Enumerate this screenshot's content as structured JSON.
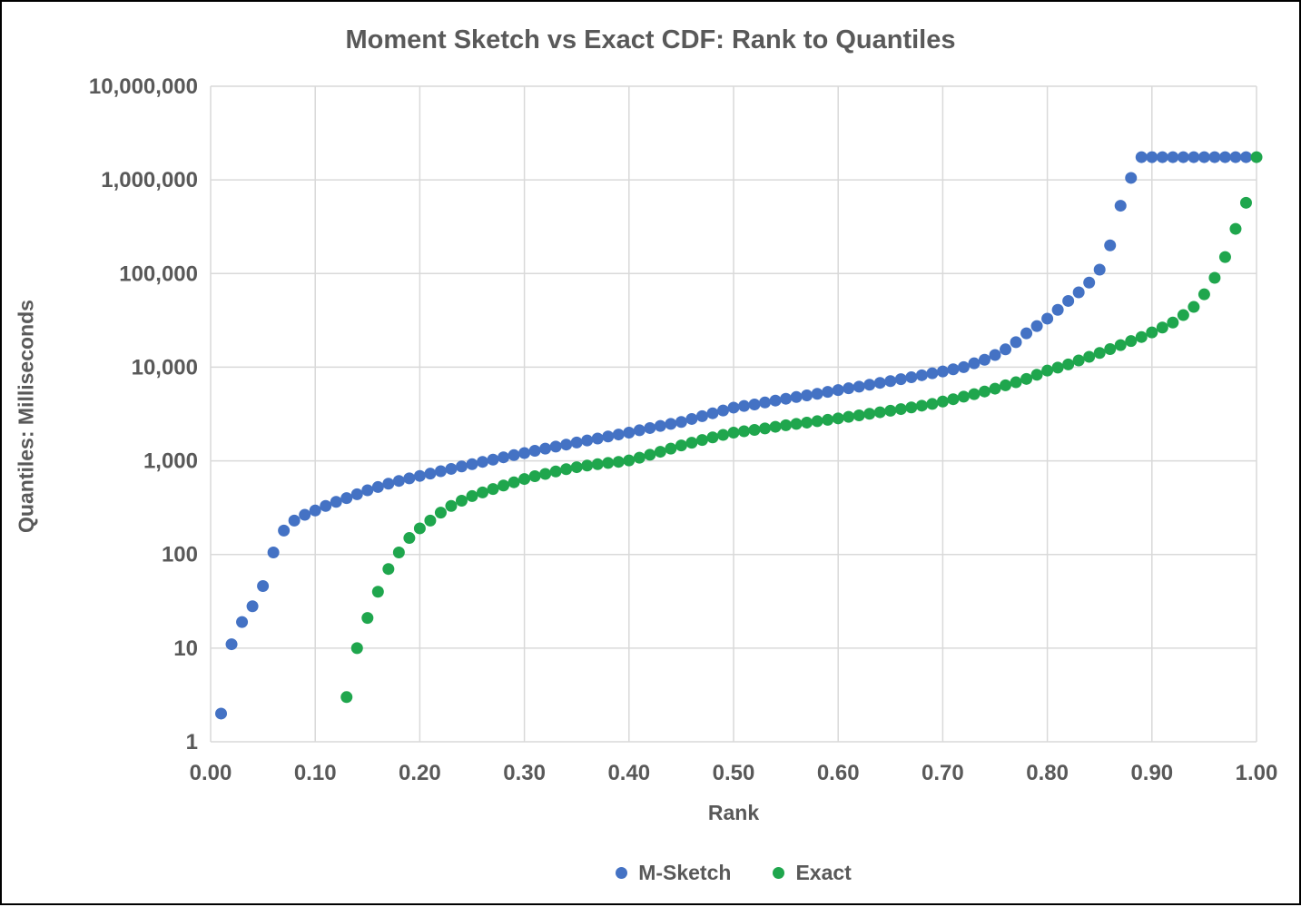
{
  "chart_data": {
    "type": "scatter",
    "title": "Moment Sketch vs Exact CDF: Rank to Quantiles",
    "xlabel": "Rank",
    "ylabel": "Quantiles: Milliseconds",
    "grid": true,
    "legend_position": "bottom",
    "style": {
      "background": "#FFFFFF",
      "border_color": "#000000",
      "grid_color": "#D9D9D9",
      "text_color": "#595959",
      "marker_radius": 6.5
    },
    "x_axis": {
      "min": 0,
      "max": 1,
      "tick_values": [
        0,
        0.1,
        0.2,
        0.3,
        0.4,
        0.5,
        0.6,
        0.7,
        0.8,
        0.9,
        1.0
      ],
      "tick_labels": [
        "0.00",
        "0.10",
        "0.20",
        "0.30",
        "0.40",
        "0.50",
        "0.60",
        "0.70",
        "0.80",
        "0.90",
        "1.00"
      ]
    },
    "y_axis": {
      "scale": "log",
      "min": 1,
      "max": 10000000,
      "tick_values": [
        1,
        10,
        100,
        1000,
        10000,
        100000,
        1000000,
        10000000
      ],
      "tick_labels": [
        "1",
        "10",
        "100",
        "1,000",
        "10,000",
        "100,000",
        "1,000,000",
        "10,000,000"
      ]
    },
    "series": [
      {
        "name": "M-Sketch",
        "color": "#4472C4",
        "marker": "circle",
        "x": [
          0.01,
          0.02,
          0.03,
          0.04,
          0.05,
          0.06,
          0.07,
          0.08,
          0.09,
          0.1,
          0.11,
          0.12,
          0.13,
          0.14,
          0.15,
          0.16,
          0.17,
          0.18,
          0.19,
          0.2,
          0.21,
          0.22,
          0.23,
          0.24,
          0.25,
          0.26,
          0.27,
          0.28,
          0.29,
          0.3,
          0.31,
          0.32,
          0.33,
          0.34,
          0.35,
          0.36,
          0.37,
          0.38,
          0.39,
          0.4,
          0.41,
          0.42,
          0.43,
          0.44,
          0.45,
          0.46,
          0.47,
          0.48,
          0.49,
          0.5,
          0.51,
          0.52,
          0.53,
          0.54,
          0.55,
          0.56,
          0.57,
          0.58,
          0.59,
          0.6,
          0.61,
          0.62,
          0.63,
          0.64,
          0.65,
          0.66,
          0.67,
          0.68,
          0.69,
          0.7,
          0.71,
          0.72,
          0.73,
          0.74,
          0.75,
          0.76,
          0.77,
          0.78,
          0.79,
          0.8,
          0.81,
          0.82,
          0.83,
          0.84,
          0.85,
          0.86,
          0.87,
          0.88,
          0.89,
          0.9,
          0.91,
          0.92,
          0.93,
          0.94,
          0.95,
          0.96,
          0.97,
          0.98,
          0.99
        ],
        "y": [
          2,
          11,
          19,
          28,
          46,
          105,
          180,
          230,
          265,
          295,
          330,
          365,
          400,
          440,
          485,
          525,
          570,
          610,
          650,
          690,
          730,
          775,
          820,
          870,
          920,
          975,
          1030,
          1090,
          1150,
          1210,
          1280,
          1350,
          1420,
          1490,
          1570,
          1650,
          1730,
          1820,
          1910,
          2000,
          2120,
          2240,
          2360,
          2480,
          2600,
          2800,
          3000,
          3220,
          3450,
          3700,
          3850,
          4000,
          4200,
          4400,
          4600,
          4800,
          5000,
          5200,
          5450,
          5700,
          5950,
          6200,
          6500,
          6800,
          7100,
          7450,
          7800,
          8200,
          8600,
          9000,
          9500,
          10000,
          11000,
          12000,
          13500,
          15500,
          18500,
          23000,
          27500,
          33000,
          41000,
          51000,
          63000,
          80000,
          110000,
          200000,
          530000,
          1050000,
          1750000,
          1750000,
          1750000,
          1750000,
          1750000,
          1750000,
          1750000,
          1750000,
          1750000,
          1750000,
          1750000
        ]
      },
      {
        "name": "Exact",
        "color": "#1FA64D",
        "marker": "circle",
        "x": [
          0.13,
          0.14,
          0.15,
          0.16,
          0.17,
          0.18,
          0.19,
          0.2,
          0.21,
          0.22,
          0.23,
          0.24,
          0.25,
          0.26,
          0.27,
          0.28,
          0.29,
          0.3,
          0.31,
          0.32,
          0.33,
          0.34,
          0.35,
          0.36,
          0.37,
          0.38,
          0.39,
          0.4,
          0.41,
          0.42,
          0.43,
          0.44,
          0.45,
          0.46,
          0.47,
          0.48,
          0.49,
          0.5,
          0.51,
          0.52,
          0.53,
          0.54,
          0.55,
          0.56,
          0.57,
          0.58,
          0.59,
          0.6,
          0.61,
          0.62,
          0.63,
          0.64,
          0.65,
          0.66,
          0.67,
          0.68,
          0.69,
          0.7,
          0.71,
          0.72,
          0.73,
          0.74,
          0.75,
          0.76,
          0.77,
          0.78,
          0.79,
          0.8,
          0.81,
          0.82,
          0.83,
          0.84,
          0.85,
          0.86,
          0.87,
          0.88,
          0.89,
          0.9,
          0.91,
          0.92,
          0.93,
          0.94,
          0.95,
          0.96,
          0.97,
          0.98,
          0.99,
          1.0
        ],
        "y": [
          3,
          10,
          21,
          40,
          70,
          105,
          150,
          190,
          230,
          280,
          330,
          375,
          420,
          460,
          500,
          545,
          590,
          640,
          685,
          725,
          770,
          815,
          855,
          890,
          920,
          950,
          975,
          1010,
          1080,
          1160,
          1250,
          1350,
          1460,
          1560,
          1670,
          1780,
          1890,
          2000,
          2070,
          2140,
          2220,
          2310,
          2400,
          2480,
          2560,
          2650,
          2740,
          2840,
          2950,
          3060,
          3180,
          3300,
          3430,
          3570,
          3720,
          3880,
          4050,
          4300,
          4550,
          4850,
          5150,
          5500,
          5900,
          6400,
          6900,
          7500,
          8300,
          9200,
          9900,
          10700,
          11800,
          12900,
          14200,
          15600,
          17200,
          19000,
          21000,
          23500,
          26500,
          30000,
          36000,
          44000,
          60000,
          90000,
          150000,
          300000,
          570000,
          1750000
        ]
      }
    ]
  }
}
